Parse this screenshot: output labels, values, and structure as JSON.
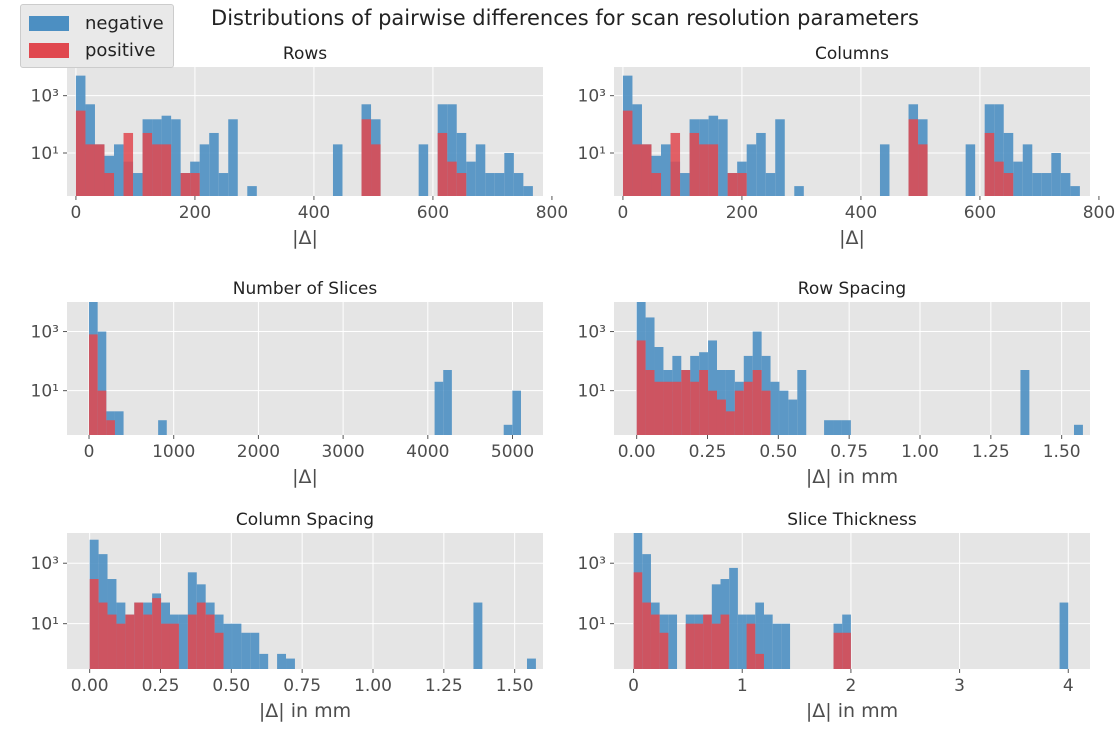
{
  "title": "Distributions of pairwise differences for scan resolution parameters",
  "legend": [
    {
      "label": "negative",
      "color": "#4c8fc2"
    },
    {
      "label": "positive",
      "color": "#e0484f"
    }
  ],
  "chart_data": [
    {
      "type": "bar",
      "title": "Rows",
      "xlabel": "|Δ|",
      "ylabel": "",
      "xlim": [
        -15,
        785
      ],
      "ylim_log10": [
        -0.5,
        4
      ],
      "y_scale": "log",
      "x_ticks": [
        0,
        200,
        400,
        600,
        800
      ],
      "y_tick_labels": [
        "10³",
        "10¹"
      ],
      "y_tick_values": [
        1000,
        10
      ],
      "bin_width": 16,
      "series": [
        {
          "name": "negative",
          "bins": [
            [
              0,
              5000
            ],
            [
              16,
              500
            ],
            [
              32,
              20
            ],
            [
              48,
              8
            ],
            [
              64,
              20
            ],
            [
              80,
              5
            ],
            [
              96,
              2
            ],
            [
              112,
              150
            ],
            [
              128,
              150
            ],
            [
              144,
              200
            ],
            [
              160,
              150
            ],
            [
              176,
              2
            ],
            [
              192,
              5
            ],
            [
              208,
              20
            ],
            [
              224,
              50
            ],
            [
              240,
              2
            ],
            [
              256,
              150
            ],
            [
              288,
              0.7
            ],
            [
              432,
              20
            ],
            [
              480,
              500
            ],
            [
              496,
              150
            ],
            [
              576,
              20
            ],
            [
              608,
              500
            ],
            [
              624,
              500
            ],
            [
              640,
              50
            ],
            [
              656,
              5
            ],
            [
              672,
              20
            ],
            [
              688,
              2
            ],
            [
              704,
              2
            ],
            [
              720,
              10
            ],
            [
              736,
              2
            ],
            [
              752,
              0.7
            ]
          ]
        },
        {
          "name": "positive",
          "bins": [
            [
              0,
              300
            ],
            [
              16,
              20
            ],
            [
              32,
              20
            ],
            [
              48,
              2
            ],
            [
              80,
              50
            ],
            [
              112,
              50
            ],
            [
              128,
              20
            ],
            [
              144,
              20
            ],
            [
              176,
              2
            ],
            [
              192,
              2
            ],
            [
              480,
              150
            ],
            [
              496,
              20
            ],
            [
              608,
              50
            ],
            [
              624,
              5
            ],
            [
              640,
              2
            ]
          ]
        }
      ]
    },
    {
      "type": "bar",
      "title": "Columns",
      "xlabel": "|Δ|",
      "ylabel": "",
      "xlim": [
        -15,
        785
      ],
      "ylim_log10": [
        -0.5,
        4
      ],
      "y_scale": "log",
      "x_ticks": [
        0,
        200,
        400,
        600,
        800
      ],
      "y_tick_labels": [
        "10³",
        "10¹"
      ],
      "y_tick_values": [
        1000,
        10
      ],
      "bin_width": 16,
      "series": [
        {
          "name": "negative",
          "bins": [
            [
              0,
              5000
            ],
            [
              16,
              500
            ],
            [
              32,
              20
            ],
            [
              48,
              8
            ],
            [
              64,
              20
            ],
            [
              80,
              5
            ],
            [
              96,
              2
            ],
            [
              112,
              150
            ],
            [
              128,
              150
            ],
            [
              144,
              200
            ],
            [
              160,
              150
            ],
            [
              176,
              2
            ],
            [
              192,
              5
            ],
            [
              208,
              20
            ],
            [
              224,
              50
            ],
            [
              240,
              2
            ],
            [
              256,
              150
            ],
            [
              288,
              0.7
            ],
            [
              432,
              20
            ],
            [
              480,
              500
            ],
            [
              496,
              150
            ],
            [
              576,
              20
            ],
            [
              608,
              500
            ],
            [
              624,
              500
            ],
            [
              640,
              50
            ],
            [
              656,
              5
            ],
            [
              672,
              20
            ],
            [
              688,
              2
            ],
            [
              704,
              2
            ],
            [
              720,
              10
            ],
            [
              736,
              2
            ],
            [
              752,
              0.7
            ]
          ]
        },
        {
          "name": "positive",
          "bins": [
            [
              0,
              300
            ],
            [
              16,
              20
            ],
            [
              32,
              20
            ],
            [
              48,
              2
            ],
            [
              80,
              50
            ],
            [
              112,
              50
            ],
            [
              128,
              20
            ],
            [
              144,
              20
            ],
            [
              176,
              2
            ],
            [
              192,
              2
            ],
            [
              480,
              150
            ],
            [
              496,
              20
            ],
            [
              608,
              50
            ],
            [
              624,
              5
            ],
            [
              640,
              2
            ]
          ]
        }
      ]
    },
    {
      "type": "bar",
      "title": "Number of Slices",
      "xlabel": "|Δ|",
      "ylabel": "",
      "xlim": [
        -260,
        5360
      ],
      "ylim_log10": [
        -0.5,
        4
      ],
      "y_scale": "log",
      "x_ticks": [
        0,
        1000,
        2000,
        3000,
        4000,
        5000
      ],
      "y_tick_labels": [
        "10³",
        "10¹"
      ],
      "y_tick_values": [
        1000,
        10
      ],
      "bin_width": 102,
      "series": [
        {
          "name": "negative",
          "bins": [
            [
              0,
              10000
            ],
            [
              102,
              1000
            ],
            [
              204,
              2
            ],
            [
              306,
              2
            ],
            [
              816,
              1
            ],
            [
              4080,
              20
            ],
            [
              4182,
              50
            ],
            [
              4896,
              0.7
            ],
            [
              4998,
              10
            ]
          ]
        },
        {
          "name": "positive",
          "bins": [
            [
              0,
              800
            ],
            [
              102,
              10
            ],
            [
              204,
              1
            ]
          ]
        }
      ]
    },
    {
      "type": "bar",
      "title": "Row Spacing",
      "xlabel": "|Δ| in mm",
      "ylabel": "",
      "xlim": [
        -0.08,
        1.6
      ],
      "ylim_log10": [
        -0.5,
        4
      ],
      "y_scale": "log",
      "x_ticks": [
        0.0,
        0.25,
        0.5,
        0.75,
        1.0,
        1.25,
        1.5
      ],
      "y_tick_labels": [
        "10³",
        "10¹"
      ],
      "y_tick_values": [
        1000,
        10
      ],
      "bin_width": 0.0315,
      "series": [
        {
          "name": "negative",
          "bins": [
            [
              0,
              10000
            ],
            [
              0.0315,
              3000
            ],
            [
              0.063,
              300
            ],
            [
              0.0945,
              50
            ],
            [
              0.126,
              150
            ],
            [
              0.1575,
              50
            ],
            [
              0.189,
              150
            ],
            [
              0.2205,
              200
            ],
            [
              0.252,
              500
            ],
            [
              0.2835,
              50
            ],
            [
              0.315,
              50
            ],
            [
              0.3465,
              20
            ],
            [
              0.378,
              150
            ],
            [
              0.4095,
              1000
            ],
            [
              0.441,
              150
            ],
            [
              0.4725,
              20
            ],
            [
              0.504,
              10
            ],
            [
              0.5355,
              5
            ],
            [
              0.567,
              50
            ],
            [
              0.6615,
              1
            ],
            [
              0.693,
              1
            ],
            [
              0.7245,
              1
            ],
            [
              1.3545,
              50
            ],
            [
              1.5435,
              0.7
            ]
          ]
        },
        {
          "name": "positive",
          "bins": [
            [
              0,
              500
            ],
            [
              0.0315,
              50
            ],
            [
              0.063,
              20
            ],
            [
              0.0945,
              20
            ],
            [
              0.126,
              20
            ],
            [
              0.1575,
              50
            ],
            [
              0.189,
              20
            ],
            [
              0.2205,
              50
            ],
            [
              0.252,
              10
            ],
            [
              0.2835,
              5
            ],
            [
              0.315,
              2
            ],
            [
              0.3465,
              10
            ],
            [
              0.378,
              20
            ],
            [
              0.4095,
              50
            ],
            [
              0.441,
              10
            ]
          ]
        }
      ]
    },
    {
      "type": "bar",
      "title": "Column Spacing",
      "xlabel": "|Δ| in mm",
      "ylabel": "",
      "xlim": [
        -0.08,
        1.6
      ],
      "ylim_log10": [
        -0.5,
        4
      ],
      "y_scale": "log",
      "x_ticks": [
        0.0,
        0.25,
        0.5,
        0.75,
        1.0,
        1.25,
        1.5
      ],
      "y_tick_labels": [
        "10³",
        "10¹"
      ],
      "y_tick_values": [
        1000,
        10
      ],
      "bin_width": 0.0315,
      "series": [
        {
          "name": "negative",
          "bins": [
            [
              0,
              6000
            ],
            [
              0.0315,
              2000
            ],
            [
              0.063,
              300
            ],
            [
              0.0945,
              50
            ],
            [
              0.126,
              20
            ],
            [
              0.1575,
              50
            ],
            [
              0.189,
              50
            ],
            [
              0.2205,
              100
            ],
            [
              0.252,
              50
            ],
            [
              0.2835,
              20
            ],
            [
              0.315,
              20
            ],
            [
              0.3465,
              500
            ],
            [
              0.378,
              200
            ],
            [
              0.4095,
              50
            ],
            [
              0.441,
              20
            ],
            [
              0.4725,
              10
            ],
            [
              0.504,
              10
            ],
            [
              0.5355,
              5
            ],
            [
              0.567,
              5
            ],
            [
              0.5985,
              1
            ],
            [
              0.6615,
              1
            ],
            [
              0.693,
              0.7
            ],
            [
              1.3545,
              50
            ],
            [
              1.5435,
              0.7
            ]
          ]
        },
        {
          "name": "positive",
          "bins": [
            [
              0,
              300
            ],
            [
              0.0315,
              50
            ],
            [
              0.063,
              20
            ],
            [
              0.0945,
              10
            ],
            [
              0.126,
              20
            ],
            [
              0.1575,
              50
            ],
            [
              0.189,
              20
            ],
            [
              0.2205,
              70
            ],
            [
              0.252,
              10
            ],
            [
              0.2835,
              10
            ],
            [
              0.3465,
              20
            ],
            [
              0.378,
              50
            ],
            [
              0.4095,
              20
            ],
            [
              0.441,
              5
            ]
          ]
        }
      ]
    },
    {
      "type": "bar",
      "title": "Slice Thickness",
      "xlabel": "|Δ| in mm",
      "ylabel": "",
      "xlim": [
        -0.18,
        4.2
      ],
      "ylim_log10": [
        -0.5,
        4
      ],
      "y_scale": "log",
      "x_ticks": [
        0,
        1,
        2,
        3,
        4
      ],
      "y_tick_labels": [
        "10³",
        "10¹"
      ],
      "y_tick_values": [
        1000,
        10
      ],
      "bin_width": 0.08,
      "series": [
        {
          "name": "negative",
          "bins": [
            [
              0,
              10000
            ],
            [
              0.08,
              2000
            ],
            [
              0.16,
              50
            ],
            [
              0.24,
              20
            ],
            [
              0.32,
              20
            ],
            [
              0.48,
              20
            ],
            [
              0.56,
              20
            ],
            [
              0.64,
              20
            ],
            [
              0.72,
              200
            ],
            [
              0.8,
              300
            ],
            [
              0.88,
              700
            ],
            [
              0.96,
              20
            ],
            [
              1.04,
              20
            ],
            [
              1.12,
              50
            ],
            [
              1.2,
              20
            ],
            [
              1.28,
              10
            ],
            [
              1.36,
              10
            ],
            [
              1.84,
              10
            ],
            [
              1.92,
              20
            ],
            [
              3.92,
              50
            ]
          ]
        },
        {
          "name": "positive",
          "bins": [
            [
              0,
              500
            ],
            [
              0.08,
              50
            ],
            [
              0.16,
              20
            ],
            [
              0.24,
              5
            ],
            [
              0.48,
              10
            ],
            [
              0.56,
              10
            ],
            [
              0.64,
              20
            ],
            [
              0.72,
              10
            ],
            [
              0.8,
              20
            ],
            [
              1.04,
              10
            ],
            [
              1.12,
              1
            ],
            [
              1.84,
              5
            ],
            [
              1.92,
              5
            ]
          ]
        }
      ]
    }
  ]
}
